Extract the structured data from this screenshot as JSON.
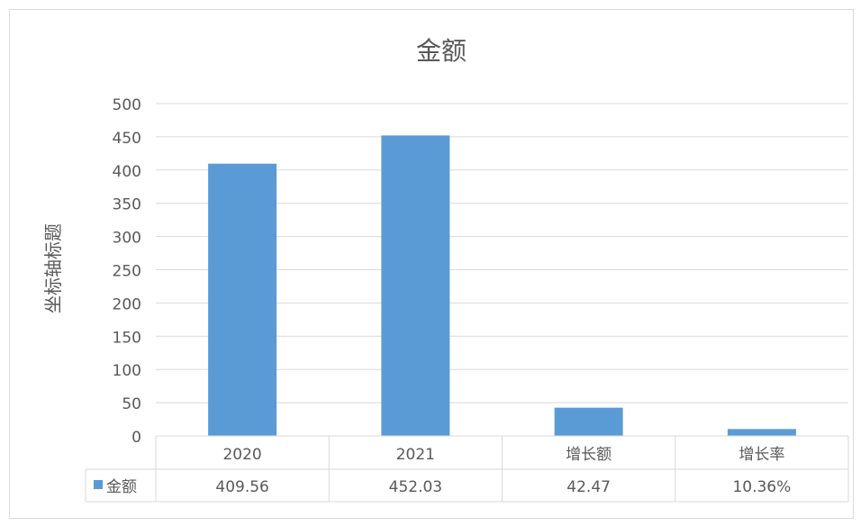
{
  "chart_data": {
    "type": "bar",
    "title": "金额",
    "ylabel": "坐标轴标题",
    "xlabel": "",
    "categories": [
      "2020",
      "2021",
      "增长额",
      "增长率"
    ],
    "series": [
      {
        "name": "金额",
        "values": [
          409.56,
          452.03,
          42.47,
          10.36
        ],
        "labels": [
          "409.56",
          "452.03",
          "42.47",
          "10.36%"
        ],
        "color": "#5B9BD5"
      }
    ],
    "ylim": [
      0,
      500
    ],
    "yticks": [
      "0",
      "50",
      "100",
      "150",
      "200",
      "250",
      "300",
      "350",
      "400",
      "450",
      "500"
    ],
    "grid": true,
    "data_table": true
  }
}
